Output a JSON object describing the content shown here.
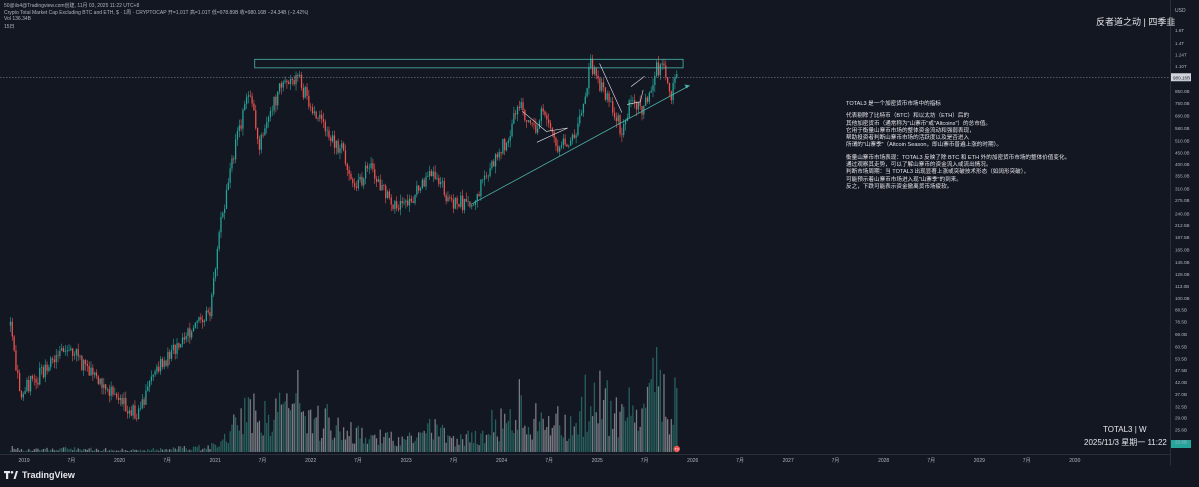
{
  "header": {
    "line0": "50@ils4@Tradingview.com创建, 11月 03, 2025 11:22 UTC+8",
    "line1": "Crypto Total Market Cap Excluding BTC and ETH, $ · 1周 · CRYPTOCAP  开=1.01T  高=1.01T  低=978.89B  收=980.16B  −24.34B (−2.42%)",
    "line2": "Vol  136.34B",
    "line3": "15日"
  },
  "signature": "反者道之动 | 四季韭",
  "annotation": {
    "p1": [
      "TOTAL3 是一个加密货币市场中的指标"
    ],
    "p2": [
      "代表剔除了比特币（BTC）和以太坊（ETH）后的",
      "其他加密货币（通常称为\"山寨币\"或\"Altcoins\"）的总市值。",
      "它用于衡量山寨币市场的整体资金流动和强弱表现，",
      "帮助投资者判断山寨币市场的活跃度以及是否进入",
      "所谓的\"山寨季\"（Altcoin Season，即山寨币普遍上涨的时期）。"
    ],
    "p3": [
      "衡量山寨币市场表现：TOTAL3 反映了除 BTC 和 ETH 外的加密货币市场的整体价值变化。",
      "通过观察其走势，可以了解山寨币的资金流入或流出情况。",
      "判断市场周期：当 TOTAL3 出现显著上涨或突破技术形态（如阔形突破），",
      "可能预示着山寨币市场进入现\"山寨季\"的到来。",
      "反之，下跌可能表示资金撤离货币场疲软。"
    ]
  },
  "symbol_label": "TOTAL3 | W",
  "datetime_label": "2025/11/3 星期一 11:22",
  "brand": "TradingView",
  "tv_badge": "TV",
  "colors": {
    "background": "#131722",
    "up": "#26a69a",
    "down": "#ef5350",
    "annotation_line": "#4db6ac",
    "price_line": "#9598a1",
    "text": "#d1d4dc"
  },
  "chart_data": {
    "type": "candlestick",
    "interval": "1W",
    "title": "Crypto Total Market Cap Excluding BTC and ETH, $ · 1周 · CRYPTOCAP",
    "currency": "USD",
    "y_scale": "log",
    "ylim": [
      23,
      1700
    ],
    "xlim": [
      "2018-10-01",
      "2030-12-31"
    ],
    "last_price_label": "980.16B",
    "y_ticks": [
      "1.6T",
      "1.4T",
      "1.24T",
      "1.10T",
      "960.0B",
      "850.0B",
      "750.0B",
      "660.0B",
      "580.0B",
      "510.0B",
      "450.0B",
      "400.0B",
      "355.0B",
      "310.0B",
      "275.0B",
      "240.0B",
      "212.5B",
      "187.5B",
      "165.0B",
      "145.0B",
      "128.0B",
      "113.0B",
      "100.0B",
      "88.5B",
      "78.5B",
      "69.0B",
      "60.5B",
      "53.5B",
      "47.5B",
      "42.0B",
      "37.0B",
      "32.5B",
      "29.0B",
      "25.6B",
      "22.6B"
    ],
    "x_ticks": [
      "7月",
      "2019",
      "7月",
      "2020",
      "7月",
      "2021",
      "7月",
      "2022",
      "7月",
      "2023",
      "7月",
      "2024",
      "7月",
      "2025",
      "7月",
      "2026",
      "7月",
      "2027",
      "7月",
      "2028",
      "7月",
      "2029",
      "7月",
      "2030"
    ],
    "anchors": [
      {
        "date": "2018-11-10",
        "value": 75
      },
      {
        "date": "2018-12-15",
        "value": 37
      },
      {
        "date": "2019-02-01",
        "value": 42
      },
      {
        "date": "2019-06-25",
        "value": 60
      },
      {
        "date": "2019-09-15",
        "value": 45
      },
      {
        "date": "2020-03-12",
        "value": 30
      },
      {
        "date": "2020-06-01",
        "value": 50
      },
      {
        "date": "2020-09-01",
        "value": 65
      },
      {
        "date": "2020-12-15",
        "value": 90
      },
      {
        "date": "2021-01-15",
        "value": 190
      },
      {
        "date": "2021-03-01",
        "value": 380
      },
      {
        "date": "2021-05-10",
        "value": 900
      },
      {
        "date": "2021-06-20",
        "value": 480
      },
      {
        "date": "2021-09-05",
        "value": 900
      },
      {
        "date": "2021-11-08",
        "value": 1000
      },
      {
        "date": "2022-01-20",
        "value": 650
      },
      {
        "date": "2022-05-10",
        "value": 450
      },
      {
        "date": "2022-06-18",
        "value": 300
      },
      {
        "date": "2022-08-14",
        "value": 390
      },
      {
        "date": "2022-11-10",
        "value": 270
      },
      {
        "date": "2023-01-01",
        "value": 255
      },
      {
        "date": "2023-04-14",
        "value": 380
      },
      {
        "date": "2023-06-15",
        "value": 270
      },
      {
        "date": "2023-09-11",
        "value": 265
      },
      {
        "date": "2023-11-15",
        "value": 380
      },
      {
        "date": "2024-01-10",
        "value": 490
      },
      {
        "date": "2024-03-13",
        "value": 740
      },
      {
        "date": "2024-05-01",
        "value": 560
      },
      {
        "date": "2024-06-01",
        "value": 680
      },
      {
        "date": "2024-08-05",
        "value": 460
      },
      {
        "date": "2024-10-15",
        "value": 560
      },
      {
        "date": "2024-12-08",
        "value": 1140
      },
      {
        "date": "2025-02-03",
        "value": 800
      },
      {
        "date": "2025-04-07",
        "value": 560
      },
      {
        "date": "2025-05-15",
        "value": 800
      },
      {
        "date": "2025-06-22",
        "value": 680
      },
      {
        "date": "2025-08-10",
        "value": 1050
      },
      {
        "date": "2025-09-15",
        "value": 1120
      },
      {
        "date": "2025-10-10",
        "value": 800
      },
      {
        "date": "2025-10-20",
        "value": 1030
      },
      {
        "date": "2025-11-03",
        "value": 980
      }
    ],
    "drawings": {
      "resistance_zone": {
        "from": "2021-06-01",
        "to": "2025-11-25",
        "top": 1180,
        "bottom": 1080
      },
      "rising_trendline": [
        {
          "date": "2023-09-11",
          "value": 265
        },
        {
          "date": "2025-12-20",
          "value": 900
        }
      ],
      "flags": [
        [
          {
            "date": "2024-03-20",
            "value": 690
          },
          {
            "date": "2024-06-20",
            "value": 560
          },
          {
            "date": "2024-09-10",
            "value": 580
          },
          {
            "date": "2024-05-15",
            "value": 500
          }
        ],
        [
          {
            "date": "2025-01-10",
            "value": 1130
          },
          {
            "date": "2025-04-05",
            "value": 680
          }
        ],
        [
          {
            "date": "2025-04-25",
            "value": 740
          },
          {
            "date": "2025-06-15",
            "value": 760
          },
          {
            "date": "2025-06-25",
            "value": 860
          }
        ],
        [
          {
            "date": "2025-05-10",
            "value": 890
          },
          {
            "date": "2025-07-01",
            "value": 990
          }
        ]
      ]
    }
  }
}
